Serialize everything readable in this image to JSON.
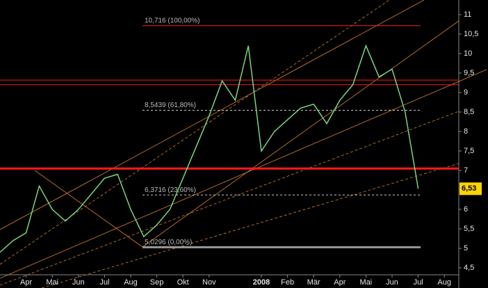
{
  "chart_data": {
    "type": "line",
    "categories": [
      null,
      null,
      "Apr",
      null,
      "Mai",
      null,
      "Jun",
      null,
      "Jul",
      null,
      "Aug",
      null,
      "Sep",
      null,
      "Okt",
      null,
      "Nov",
      null,
      null,
      null,
      "2008",
      null,
      "Feb",
      null,
      "Mär",
      null,
      "Apr",
      null,
      "Mai",
      null,
      "Jun",
      null,
      "Jul",
      null,
      "Aug",
      null
    ],
    "values": [
      4.9,
      5.2,
      5.4,
      6.6,
      6.0,
      5.7,
      6.0,
      6.4,
      6.8,
      6.9,
      6.0,
      5.3,
      5.6,
      6.0,
      6.8,
      7.6,
      8.4,
      9.3,
      8.8,
      10.2,
      7.5,
      8.0,
      8.3,
      8.6,
      8.7,
      8.2,
      8.8,
      9.2,
      10.2,
      9.4,
      9.6,
      8.5,
      6.53,
      null,
      null,
      null
    ],
    "color": "#7cd67c",
    "ylim": [
      4,
      11.375
    ],
    "yticks": [
      {
        "value": 4.5,
        "label": "4,5"
      },
      5,
      {
        "value": 5.5,
        "label": "5,5"
      },
      6,
      {
        "value": 6.5,
        "label": "6,5"
      },
      7,
      {
        "value": 7.5,
        "label": "7,5"
      },
      8,
      {
        "value": 8.5,
        "label": "8,5"
      },
      9,
      {
        "value": 9.5,
        "label": "9,5"
      },
      10,
      {
        "value": 10.5,
        "label": "10,5"
      },
      11
    ],
    "levels": [
      {
        "value": 10.716,
        "label": "10,716 (100,00%)",
        "color": "#ff2020"
      },
      {
        "value": 8.5439,
        "label": "8,5439 (61,80%)",
        "color": "#cccccc"
      },
      {
        "value": 6.3716,
        "label": "6,3716 (23,60%)",
        "color": "#cccccc"
      },
      {
        "value": 5.0296,
        "label": "5,0296 (0,00%)",
        "color": "#999999"
      }
    ],
    "red_lines": [
      9.32,
      9.2,
      7.05
    ],
    "last_value": {
      "value": 6.53,
      "label": "6,53"
    }
  }
}
